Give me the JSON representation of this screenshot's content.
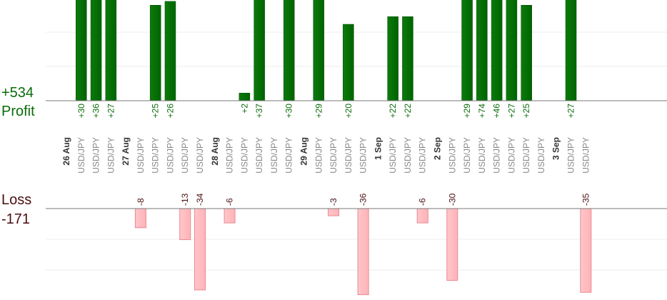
{
  "summary": {
    "profit_value": "+534",
    "profit_label": "Profit",
    "loss_label": "Loss",
    "loss_value": "-171"
  },
  "colors": {
    "profit_bar": "#006400",
    "profit_text": "#0a6b0a",
    "loss_bar": "#ffb3b8",
    "loss_text": "#4a0f0f",
    "instrument_text": "#888888",
    "date_text": "#333333",
    "axis": "#777777",
    "grid": "#ececec"
  },
  "chart_data": {
    "type": "bar",
    "grid": true,
    "columns": [
      {
        "date": "26 Aug"
      },
      {
        "label": "USD/JPY",
        "profit": 30,
        "value_label": "+30"
      },
      {
        "label": "USD/JPY",
        "profit": 36,
        "value_label": "+36"
      },
      {
        "label": "USD/JPY",
        "profit": 27,
        "value_label": "+27"
      },
      {
        "date": "27 Aug"
      },
      {
        "label": "USD/JPY",
        "loss": -8,
        "value_label": "-8"
      },
      {
        "label": "USD/JPY",
        "profit": 25,
        "value_label": "+25"
      },
      {
        "label": "USD/JPY",
        "profit": 26,
        "value_label": "+26"
      },
      {
        "label": "USD/JPY",
        "loss": -13,
        "value_label": "-13"
      },
      {
        "label": "USD/JPY",
        "loss": -34,
        "value_label": "-34"
      },
      {
        "date": "28 Aug"
      },
      {
        "label": "USD/JPY",
        "loss": -6,
        "value_label": "-6"
      },
      {
        "label": "USD/JPY",
        "profit": 2,
        "value_label": "+2"
      },
      {
        "label": "USD/JPY",
        "profit": 37,
        "value_label": "+37"
      },
      {
        "label": "USD/JPY"
      },
      {
        "label": "USD/JPY",
        "profit": 30,
        "value_label": "+30"
      },
      {
        "date": "29 Aug"
      },
      {
        "label": "USD/JPY",
        "profit": 29,
        "value_label": "+29"
      },
      {
        "label": "USD/JPY",
        "loss": -3,
        "value_label": "-3"
      },
      {
        "label": "USD/JPY",
        "profit": 20,
        "value_label": "+20"
      },
      {
        "label": "USD/JPY",
        "loss": -36,
        "value_label": "-36"
      },
      {
        "date": "1 Sep"
      },
      {
        "label": "USD/JPY",
        "profit": 22,
        "value_label": "+22"
      },
      {
        "label": "USD/JPY",
        "profit": 22,
        "value_label": "+22"
      },
      {
        "label": "USD/JPY",
        "loss": -6,
        "value_label": "-6"
      },
      {
        "date": "2 Sep"
      },
      {
        "label": "USD/JPY",
        "loss": -30,
        "value_label": "-30"
      },
      {
        "label": "USD/JPY",
        "profit": 29,
        "value_label": "+29"
      },
      {
        "label": "USD/JPY",
        "profit": 74,
        "value_label": "+74"
      },
      {
        "label": "USD/JPY",
        "profit": 46,
        "value_label": "+46"
      },
      {
        "label": "USD/JPY",
        "profit": 27,
        "value_label": "+27"
      },
      {
        "label": "USD/JPY",
        "profit": 25,
        "value_label": "+25"
      },
      {
        "label": "USD/JPY"
      },
      {
        "date": "3 Sep"
      },
      {
        "label": "USD/JPY",
        "profit": 27,
        "value_label": "+27"
      },
      {
        "label": "USD/JPY",
        "loss": -35,
        "value_label": "-35"
      }
    ]
  }
}
